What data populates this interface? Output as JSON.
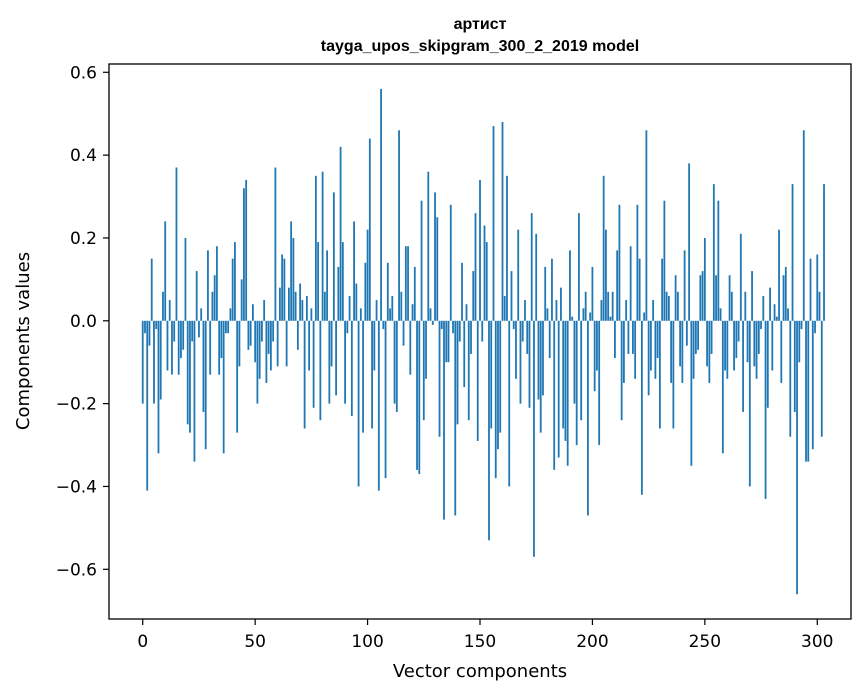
{
  "chart_data": {
    "type": "bar",
    "title": "артист",
    "subtitle": "tayga_upos_skipgram_300_2_2019 model",
    "xlabel": "Vector components",
    "ylabel": "Components values",
    "xlim": [
      -15,
      315
    ],
    "ylim": [
      -0.72,
      0.62
    ],
    "xticks": [
      0,
      50,
      100,
      150,
      200,
      250,
      300
    ],
    "xtick_labels": [
      "0",
      "50",
      "100",
      "150",
      "200",
      "250",
      "300"
    ],
    "yticks": [
      -0.6,
      -0.4,
      -0.2,
      0.0,
      0.2,
      0.4,
      0.6
    ],
    "ytick_labels": [
      "−0.6",
      "−0.4",
      "−0.2",
      "0.0",
      "0.2",
      "0.4",
      "0.6"
    ],
    "bar_color": "#1f77b4",
    "grid": false,
    "legend": "none",
    "series": [
      {
        "values": [
          -0.2,
          -0.03,
          -0.41,
          -0.06,
          0.15,
          -0.2,
          -0.02,
          -0.32,
          -0.19,
          0.07,
          0.24,
          -0.12,
          0.05,
          -0.13,
          -0.05,
          0.37,
          -0.13,
          -0.09,
          -0.07,
          0.2,
          -0.25,
          -0.27,
          -0.05,
          -0.34,
          0.12,
          -0.04,
          0.03,
          -0.22,
          -0.31,
          0.17,
          -0.13,
          0.07,
          0.11,
          0.18,
          -0.13,
          -0.09,
          -0.32,
          -0.03,
          -0.03,
          0.03,
          0.15,
          0.19,
          -0.27,
          -0.11,
          0.1,
          0.32,
          0.34,
          -0.07,
          -0.06,
          0.04,
          -0.1,
          -0.2,
          -0.14,
          -0.05,
          0.05,
          -0.15,
          -0.08,
          -0.12,
          -0.05,
          0.37,
          -0.11,
          0.08,
          0.16,
          0.15,
          -0.11,
          0.08,
          0.24,
          0.2,
          0.07,
          -0.07,
          0.09,
          0.05,
          -0.26,
          0.06,
          -0.12,
          0.03,
          -0.21,
          0.35,
          0.19,
          -0.24,
          0.36,
          0.07,
          0.17,
          -0.2,
          -0.11,
          0.31,
          -0.18,
          0.13,
          0.42,
          0.19,
          -0.2,
          -0.03,
          0.06,
          -0.23,
          0.24,
          0.09,
          -0.4,
          0.03,
          -0.27,
          0.14,
          0.22,
          0.44,
          -0.26,
          -0.12,
          0.05,
          -0.41,
          0.56,
          -0.02,
          -0.38,
          0.14,
          0.03,
          0.06,
          -0.2,
          -0.22,
          0.46,
          0.07,
          -0.06,
          0.18,
          0.18,
          -0.13,
          0.04,
          0.13,
          -0.36,
          -0.37,
          0.29,
          -0.24,
          -0.14,
          0.36,
          0.03,
          -0.01,
          0.31,
          0.25,
          -0.28,
          -0.02,
          -0.48,
          -0.1,
          -0.1,
          0.28,
          -0.03,
          -0.47,
          -0.25,
          -0.05,
          0.14,
          -0.16,
          0.04,
          -0.24,
          -0.08,
          0.12,
          0.26,
          -0.29,
          0.34,
          -0.05,
          0.23,
          0.19,
          -0.53,
          -0.26,
          0.47,
          -0.38,
          -0.31,
          -0.27,
          0.48,
          0.06,
          0.35,
          -0.4,
          0.12,
          -0.02,
          -0.14,
          0.22,
          -0.2,
          -0.05,
          0.05,
          -0.08,
          -0.21,
          0.26,
          -0.57,
          0.21,
          -0.19,
          -0.27,
          -0.18,
          0.13,
          0.03,
          -0.09,
          0.15,
          -0.36,
          0.05,
          -0.33,
          0.08,
          -0.26,
          -0.29,
          -0.35,
          0.17,
          0.01,
          -0.2,
          -0.3,
          0.26,
          -0.24,
          0.03,
          0.07,
          -0.47,
          0.02,
          0.13,
          -0.17,
          -0.12,
          -0.3,
          0.05,
          0.35,
          0.22,
          0.07,
          0.01,
          0.07,
          -0.09,
          0.17,
          0.28,
          -0.24,
          -0.15,
          0.05,
          -0.08,
          0.18,
          -0.08,
          -0.14,
          0.28,
          0.15,
          -0.42,
          0.02,
          0.46,
          -0.18,
          -0.12,
          0.05,
          -0.14,
          -0.09,
          -0.26,
          0.15,
          0.29,
          0.07,
          0.06,
          -0.15,
          -0.26,
          0.11,
          0.07,
          -0.11,
          -0.15,
          0.17,
          -0.06,
          0.38,
          -0.35,
          -0.14,
          -0.08,
          -0.07,
          0.11,
          0.12,
          0.2,
          -0.11,
          -0.15,
          -0.08,
          0.33,
          0.11,
          0.29,
          0.03,
          -0.32,
          -0.12,
          -0.14,
          0.11,
          0.07,
          -0.12,
          -0.09,
          -0.05,
          0.21,
          -0.22,
          0.07,
          -0.1,
          -0.4,
          0.12,
          -0.11,
          -0.14,
          -0.08,
          -0.02,
          0.06,
          -0.43,
          -0.21,
          0.08,
          -0.12,
          0.04,
          0.01,
          0.22,
          -0.15,
          0.11,
          0.13,
          0.03,
          -0.28,
          0.33,
          -0.22,
          -0.66,
          -0.1,
          -0.02,
          0.46,
          -0.34,
          -0.34,
          0.15,
          -0.31,
          -0.03,
          0.16,
          0.07,
          -0.28,
          0.33
        ]
      }
    ]
  }
}
